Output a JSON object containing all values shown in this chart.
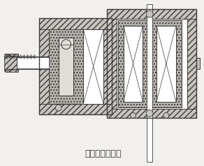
{
  "title": "（三）防爆装置",
  "title_fontsize": 9,
  "bg_color": "#f2f0ed",
  "line_color": "#3a3a3a",
  "hatch_fc": "#c8c4be",
  "white": "#ffffff",
  "dot_fc": "#b8b4ae"
}
